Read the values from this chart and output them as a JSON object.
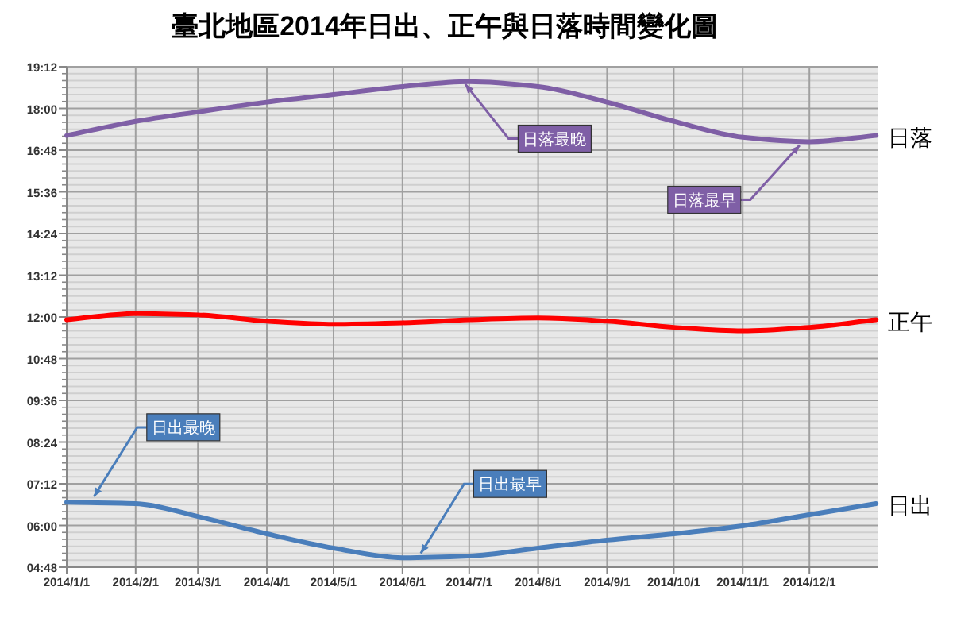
{
  "chart_data": {
    "type": "line",
    "title": "臺北地區2014年日出、正午與日落時間變化圖",
    "x": [
      "2014-01-01",
      "2014-02-01",
      "2014-03-01",
      "2014-04-01",
      "2014-05-01",
      "2014-06-01",
      "2014-07-01",
      "2014-08-01",
      "2014-09-01",
      "2014-10-01",
      "2014-11-01",
      "2014-12-01",
      "2014-12-31"
    ],
    "series": [
      {
        "name": "日落",
        "color": "#7f5fa6",
        "values": [
          17.22,
          17.63,
          17.9,
          18.18,
          18.4,
          18.63,
          18.77,
          18.63,
          18.18,
          17.63,
          17.17,
          17.04,
          17.22
        ]
      },
      {
        "name": "正午",
        "color": "#ff0000",
        "values": [
          11.92,
          12.1,
          12.06,
          11.88,
          11.79,
          11.83,
          11.92,
          11.97,
          11.88,
          11.7,
          11.6,
          11.7,
          11.92
        ]
      },
      {
        "name": "日出",
        "color": "#4a7ebb",
        "values": [
          6.67,
          6.63,
          6.26,
          5.76,
          5.35,
          5.07,
          5.12,
          5.35,
          5.58,
          5.76,
          5.99,
          6.31,
          6.63
        ]
      }
    ],
    "xlim": [
      "2014-01-01",
      "2015-01-01"
    ],
    "xticks": [
      {
        "value": "2014-01-01",
        "label": "2014/1/1"
      },
      {
        "value": "2014-02-01",
        "label": "2014/2/1"
      },
      {
        "value": "2014-03-01",
        "label": "2014/3/1"
      },
      {
        "value": "2014-04-01",
        "label": "2014/4/1"
      },
      {
        "value": "2014-05-01",
        "label": "2014/5/1"
      },
      {
        "value": "2014-06-01",
        "label": "2014/6/1"
      },
      {
        "value": "2014-07-01",
        "label": "2014/7/1"
      },
      {
        "value": "2014-08-01",
        "label": "2014/8/1"
      },
      {
        "value": "2014-09-01",
        "label": "2014/9/1"
      },
      {
        "value": "2014-10-01",
        "label": "2014/10/1"
      },
      {
        "value": "2014-11-01",
        "label": "2014/11/1"
      },
      {
        "value": "2014-12-01",
        "label": "2014/12/1"
      }
    ],
    "ylim": [
      4.8,
      19.2
    ],
    "yticks": [
      {
        "value": 4.8,
        "label": "04:48"
      },
      {
        "value": 6,
        "label": "06:00"
      },
      {
        "value": 7.2,
        "label": "07:12"
      },
      {
        "value": 8.4,
        "label": "08:24"
      },
      {
        "value": 9.6,
        "label": "09:36"
      },
      {
        "value": 10.8,
        "label": "10:48"
      },
      {
        "value": 12,
        "label": "12:00"
      },
      {
        "value": 13.2,
        "label": "13:12"
      },
      {
        "value": 14.4,
        "label": "14:24"
      },
      {
        "value": 15.6,
        "label": "15:36"
      },
      {
        "value": 16.8,
        "label": "16:48"
      },
      {
        "value": 18,
        "label": "18:00"
      },
      {
        "value": 19.2,
        "label": "19:12"
      }
    ],
    "grid": true,
    "legend": false,
    "marker": "none",
    "line_style": "solid",
    "annotations": [
      {
        "text": "日落最晚",
        "x": "2014-06-28",
        "y": 18.8
      },
      {
        "text": "日落最早",
        "x": "2014-11-28",
        "y": 17.04
      },
      {
        "text": "日出最晚",
        "x": "2014-01-12",
        "y": 6.7
      },
      {
        "text": "日出最早",
        "x": "2014-06-08",
        "y": 5.07
      }
    ]
  }
}
